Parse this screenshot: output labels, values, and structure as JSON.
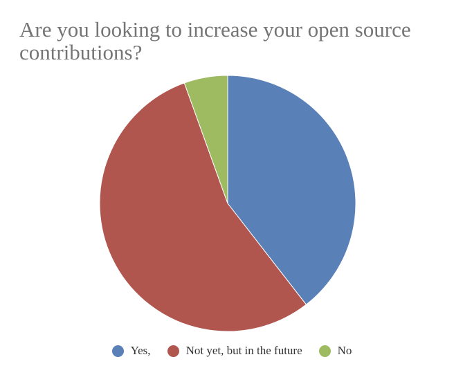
{
  "chart_data": {
    "type": "pie",
    "title": "Are you looking to increase your open source contributions?",
    "categories": [
      "Yes,",
      "Not yet, but in the future",
      "No"
    ],
    "values": [
      39.5,
      55,
      5.5
    ],
    "colors": [
      "#5a80b8",
      "#b0564f",
      "#9fbb62"
    ],
    "start_angle_deg": 0,
    "direction": "clockwise",
    "legend_position": "bottom",
    "slice_labels_shown": false
  }
}
